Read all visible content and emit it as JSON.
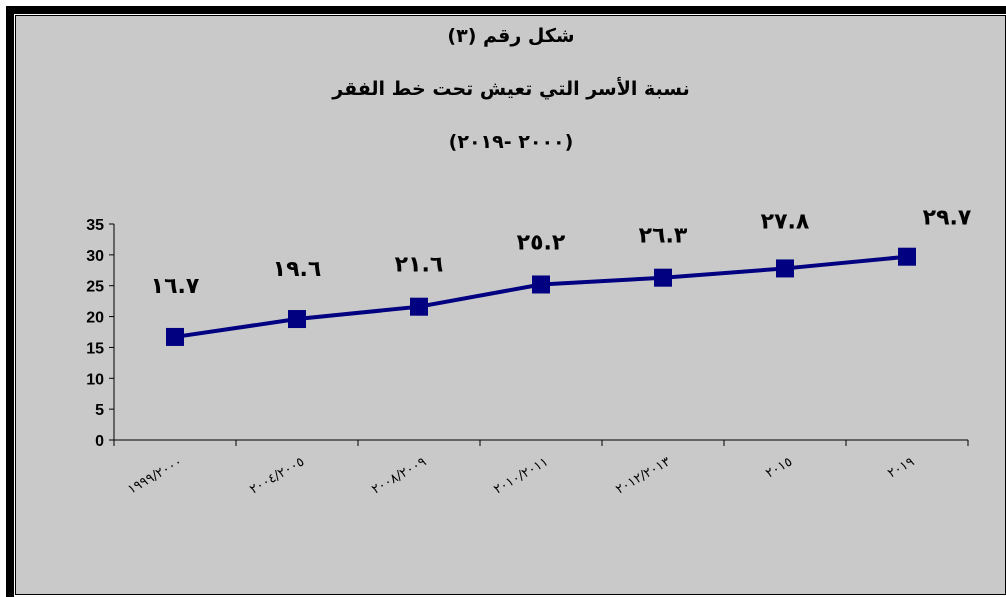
{
  "chart_data": {
    "type": "line",
    "title": "شكل رقم (٣)",
    "subtitle": "نسبة الأسر التي تعيش تحت خط الفقر",
    "period": "(٢٠٠٠ -٢٠١٩)",
    "xlabel": "",
    "ylabel": "",
    "ylim": [
      0,
      35
    ],
    "yticks": [
      "0",
      "5",
      "10",
      "15",
      "20",
      "25",
      "30",
      "35"
    ],
    "categories": [
      "١٩٩٩/٢٠٠٠",
      "٢٠٠٤/٢٠٠٥",
      "٢٠٠٨/٢٠٠٩",
      "٢٠١٠/٢٠١١",
      "٢٠١٢/٢٠١٣",
      "٢٠١٥",
      "٢٠١٩"
    ],
    "series": [
      {
        "values": [
          16.7,
          19.6,
          21.6,
          25.2,
          26.3,
          27.8,
          29.7
        ],
        "data_labels": [
          "١٦.٧",
          "١٩.٦",
          "٢١.٦",
          "٢٥.٢",
          "٢٦.٣",
          "٢٧.٨",
          "٢٩.٧"
        ],
        "color": "#000080",
        "marker": "square"
      }
    ],
    "grid": false,
    "legend": "none",
    "background_color": "#c9c9c9"
  }
}
